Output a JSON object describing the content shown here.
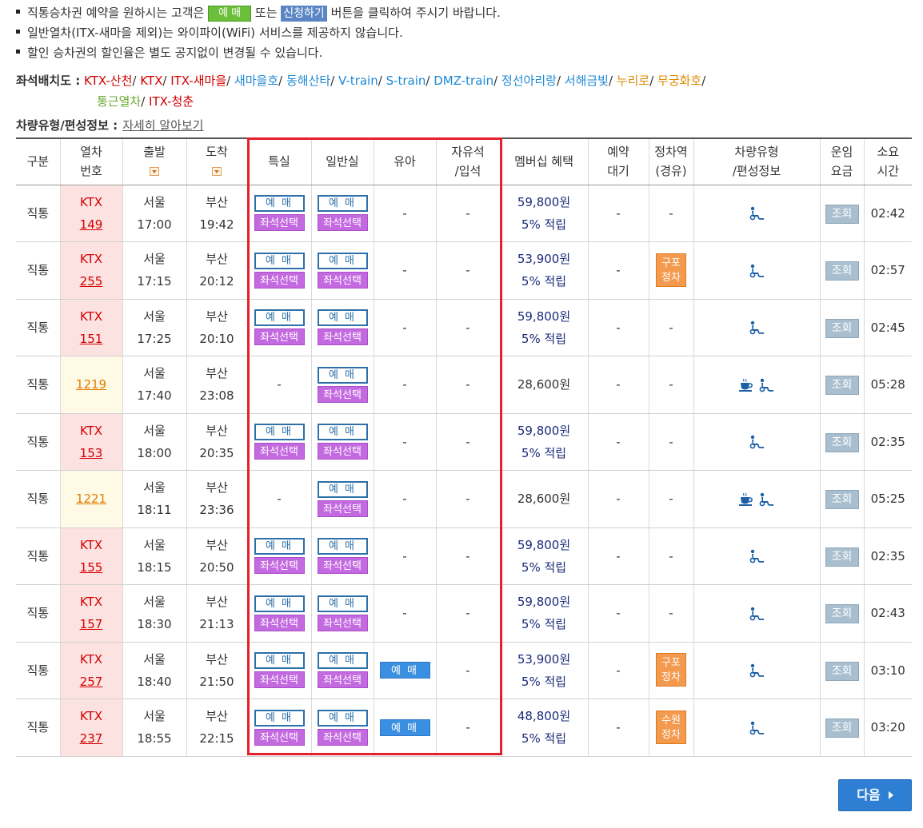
{
  "notices": [
    {
      "pre": "직통승차권 예약을 원하시는 고객은 ",
      "btn1": "예 매",
      "mid": " 또는 ",
      "btn2": "신청하기",
      "post": " 버튼을 클릭하여 주시기 바랍니다."
    },
    {
      "text": "일반열차(ITX-새마을 제외)는 와이파이(WiFi) 서비스를 제공하지 않습니다."
    },
    {
      "text": "할인 승차권의 할인율은 별도 공지없이 변경될 수 있습니다."
    }
  ],
  "seatmap": {
    "label": "좌석배치도 :",
    "links": [
      {
        "text": "KTX-산천",
        "color": "#d40000"
      },
      {
        "text": "KTX",
        "color": "#d40000"
      },
      {
        "text": "ITX-새마을",
        "color": "#d40000"
      },
      {
        "text": "새마을호",
        "color": "#1f8ad6"
      },
      {
        "text": "동해산타",
        "color": "#1f8ad6"
      },
      {
        "text": "V-train",
        "color": "#1f8ad6"
      },
      {
        "text": "S-train",
        "color": "#1f8ad6"
      },
      {
        "text": "DMZ-train",
        "color": "#1f8ad6"
      },
      {
        "text": "정선아리랑",
        "color": "#1f8ad6"
      },
      {
        "text": "서해금빛",
        "color": "#1f8ad6"
      },
      {
        "text": "누리로",
        "color": "#e08a00"
      },
      {
        "text": "무궁화호",
        "color": "#e08a00"
      },
      {
        "text": "통근열차",
        "color": "#6aa82f"
      },
      {
        "text": "ITX-청춘",
        "color": "#d40000"
      }
    ]
  },
  "carinfo": {
    "label": "차량유형/편성정보 :",
    "link": "자세히 알아보기"
  },
  "headers": {
    "type": "구분",
    "train": "열차\n번호",
    "depart": "출발",
    "arrive": "도착",
    "first": "특실",
    "general": "일반실",
    "infant": "유아",
    "free": "자유석\n/입석",
    "member": "멤버십 혜택",
    "waitlist": "예약\n대기",
    "stops": "정차역\n(경유)",
    "cartype": "차량유형\n/편성정보",
    "fare": "운임\n요금",
    "duration": "소요\n시간"
  },
  "labels": {
    "reserve": "예 매",
    "seat": "좌석선택",
    "dash": "-",
    "fare_btn": "조회",
    "next": "다음"
  },
  "rows": [
    {
      "type": "직통",
      "kind": "KTX",
      "name": "KTX",
      "num": "149",
      "dep_st": "서울",
      "dep_t": "17:00",
      "arr_st": "부산",
      "arr_t": "19:42",
      "first": true,
      "general": true,
      "infant": false,
      "price": "59,800원",
      "points": "5% 적립",
      "stop": "",
      "cafe": false,
      "duration": "02:42"
    },
    {
      "type": "직통",
      "kind": "KTX",
      "name": "KTX",
      "num": "255",
      "dep_st": "서울",
      "dep_t": "17:15",
      "arr_st": "부산",
      "arr_t": "20:12",
      "first": true,
      "general": true,
      "infant": false,
      "price": "53,900원",
      "points": "5% 적립",
      "stop": "구포\n정차",
      "cafe": false,
      "duration": "02:57"
    },
    {
      "type": "직통",
      "kind": "KTX",
      "name": "KTX",
      "num": "151",
      "dep_st": "서울",
      "dep_t": "17:25",
      "arr_st": "부산",
      "arr_t": "20:10",
      "first": true,
      "general": true,
      "infant": false,
      "price": "59,800원",
      "points": "5% 적립",
      "stop": "",
      "cafe": false,
      "duration": "02:45"
    },
    {
      "type": "직통",
      "kind": "MUGUNG",
      "name": "",
      "num": "1219",
      "dep_st": "서울",
      "dep_t": "17:40",
      "arr_st": "부산",
      "arr_t": "23:08",
      "first": false,
      "general": true,
      "infant": false,
      "price": "28,600원",
      "points": "",
      "stop": "",
      "cafe": true,
      "duration": "05:28"
    },
    {
      "type": "직통",
      "kind": "KTX",
      "name": "KTX",
      "num": "153",
      "dep_st": "서울",
      "dep_t": "18:00",
      "arr_st": "부산",
      "arr_t": "20:35",
      "first": true,
      "general": true,
      "infant": false,
      "price": "59,800원",
      "points": "5% 적립",
      "stop": "",
      "cafe": false,
      "duration": "02:35"
    },
    {
      "type": "직통",
      "kind": "MUGUNG",
      "name": "",
      "num": "1221",
      "dep_st": "서울",
      "dep_t": "18:11",
      "arr_st": "부산",
      "arr_t": "23:36",
      "first": false,
      "general": true,
      "infant": false,
      "price": "28,600원",
      "points": "",
      "stop": "",
      "cafe": true,
      "duration": "05:25"
    },
    {
      "type": "직통",
      "kind": "KTX",
      "name": "KTX",
      "num": "155",
      "dep_st": "서울",
      "dep_t": "18:15",
      "arr_st": "부산",
      "arr_t": "20:50",
      "first": true,
      "general": true,
      "infant": false,
      "price": "59,800원",
      "points": "5% 적립",
      "stop": "",
      "cafe": false,
      "duration": "02:35"
    },
    {
      "type": "직통",
      "kind": "KTX",
      "name": "KTX",
      "num": "157",
      "dep_st": "서울",
      "dep_t": "18:30",
      "arr_st": "부산",
      "arr_t": "21:13",
      "first": true,
      "general": true,
      "infant": false,
      "price": "59,800원",
      "points": "5% 적립",
      "stop": "",
      "cafe": false,
      "duration": "02:43"
    },
    {
      "type": "직통",
      "kind": "KTX",
      "name": "KTX",
      "num": "257",
      "dep_st": "서울",
      "dep_t": "18:40",
      "arr_st": "부산",
      "arr_t": "21:50",
      "first": true,
      "general": true,
      "infant": true,
      "price": "53,900원",
      "points": "5% 적립",
      "stop": "구포\n정차",
      "cafe": false,
      "duration": "03:10"
    },
    {
      "type": "직통",
      "kind": "KTX",
      "name": "KTX",
      "num": "237",
      "dep_st": "서울",
      "dep_t": "18:55",
      "arr_st": "부산",
      "arr_t": "22:15",
      "first": true,
      "general": true,
      "infant": true,
      "price": "48,800원",
      "points": "5% 적립",
      "stop": "수원\n정차",
      "cafe": false,
      "duration": "03:20"
    }
  ]
}
